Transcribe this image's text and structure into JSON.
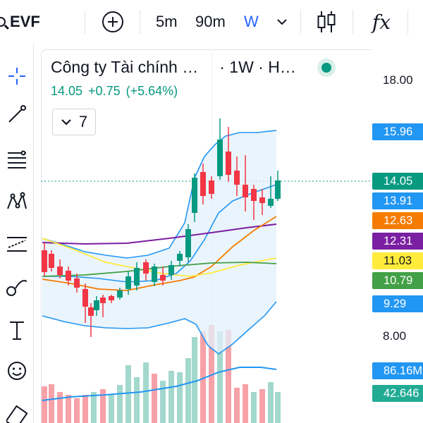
{
  "toolbar": {
    "symbol": "EVF",
    "intervals": [
      "5m",
      "90m",
      "W"
    ],
    "active_interval": "W",
    "chevron_glyph": "⌄",
    "fx_glyph": "fx",
    "icons": [
      "search-icon",
      "add-symbol-icon",
      "chevron-down-icon",
      "candles-icon",
      "indicators-icon"
    ]
  },
  "legend": {
    "title": "Công ty Tài chính …",
    "interval_exchange": "· 1W · H…",
    "last": "14.05",
    "change": "+0.75",
    "change_pct": "(+5.64%)",
    "indicators_count": "7"
  },
  "left_tools": [
    "crosshair-icon",
    "trend-line-icon",
    "fib-retracement-icon",
    "pattern-icon",
    "forecast-icon",
    "brush-icon",
    "text-icon",
    "emoji-icon",
    "ruler-icon"
  ],
  "price_scale": {
    "plain": [
      "18.00",
      "8.00"
    ],
    "tags": [
      {
        "text": "15.96",
        "color": "#2196f3"
      },
      {
        "text": "14.05",
        "color": "#089981"
      },
      {
        "text": "13.91",
        "color": "#2196f3"
      },
      {
        "text": "12.63",
        "color": "#f57c00"
      },
      {
        "text": "12.31",
        "color": "#7b1fa2"
      },
      {
        "text": "11.03",
        "color": "#ffeb3b"
      },
      {
        "text": "10.79",
        "color": "#43a047"
      },
      {
        "text": "9.29",
        "color": "#2196f3"
      },
      {
        "text": "86.16M",
        "color": "#2196f3"
      },
      {
        "text": "42.646",
        "color": "#22ab94"
      }
    ]
  },
  "colors": {
    "up": "#089981",
    "down": "#f23645",
    "bb": "#2196f3",
    "ma_orange": "#f57c00",
    "ma_purple": "#7b1fa2",
    "ma_yellow": "#ffeb3b",
    "ma_green": "#43a047"
  }
}
